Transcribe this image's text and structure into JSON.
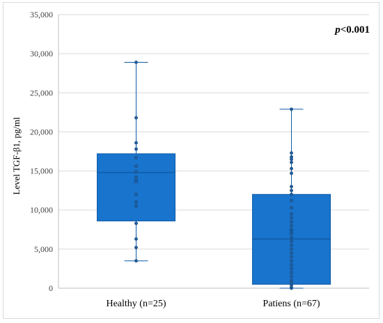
{
  "chart_data": {
    "type": "box",
    "ylabel": "Level TGF-β1, pg/ml",
    "ylim": [
      0,
      35000
    ],
    "yticks": [
      0,
      5000,
      10000,
      15000,
      20000,
      25000,
      30000,
      35000
    ],
    "ytick_labels": [
      "0",
      "5,000",
      "10,000",
      "15,000",
      "20,000",
      "25,000",
      "30,000",
      "35,000"
    ],
    "annotation": {
      "italic": "p",
      "text": "<0.001"
    },
    "grid": true,
    "colors": {
      "box_fill": "#1874cd",
      "box_edge": "#0f5aa6",
      "point": "#1f5f9e",
      "grid": "#d9d9d9"
    },
    "series": [
      {
        "category": "Healthy (n=25)",
        "min": 3500,
        "q1": 8600,
        "median": 14800,
        "q3": 17200,
        "max": 28900,
        "mean": 13700,
        "points": [
          28900,
          21800,
          18600,
          17800,
          16700,
          15600,
          14900,
          14200,
          13700,
          12000,
          11000,
          10500,
          8300,
          6300,
          5200,
          3500
        ]
      },
      {
        "category": "Patiens (n=67)",
        "min": 0,
        "q1": 500,
        "median": 6300,
        "q3": 12000,
        "max": 22900,
        "mean": 7200,
        "points": [
          22900,
          17300,
          16800,
          16500,
          16100,
          15300,
          14700,
          13000,
          12500,
          12000,
          11200,
          10300,
          9500,
          9000,
          8500,
          8000,
          7500,
          7000,
          6500,
          6000,
          5500,
          5000,
          4500,
          4000,
          3500,
          3000,
          2500,
          2000,
          1500,
          1000,
          700,
          400,
          100,
          0
        ]
      }
    ]
  }
}
